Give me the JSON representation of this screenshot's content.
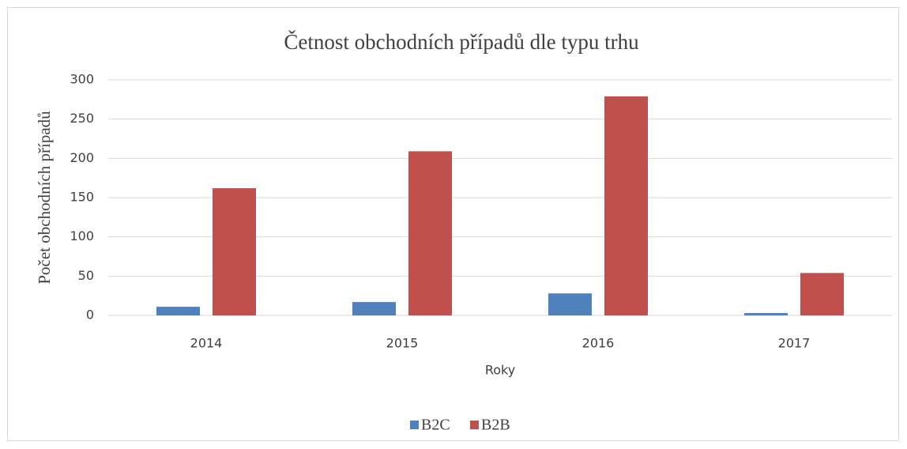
{
  "chart_data": {
    "type": "bar",
    "title": "Četnost obchodních případů dle typu trhu",
    "x_label": "Roky",
    "y_label": "Počet obchodních případů",
    "categories": [
      "2014",
      "2015",
      "2016",
      "2017"
    ],
    "series": [
      {
        "name": "B2C",
        "color": "#4f81bd",
        "values": [
          11,
          17,
          28,
          3
        ]
      },
      {
        "name": "B2B",
        "color": "#c0504d",
        "values": [
          162,
          209,
          279,
          54
        ]
      }
    ],
    "ylim": [
      0,
      300
    ],
    "yticks": [
      0,
      50,
      100,
      150,
      200,
      250,
      300
    ],
    "grid": true,
    "legend": "bottom"
  }
}
